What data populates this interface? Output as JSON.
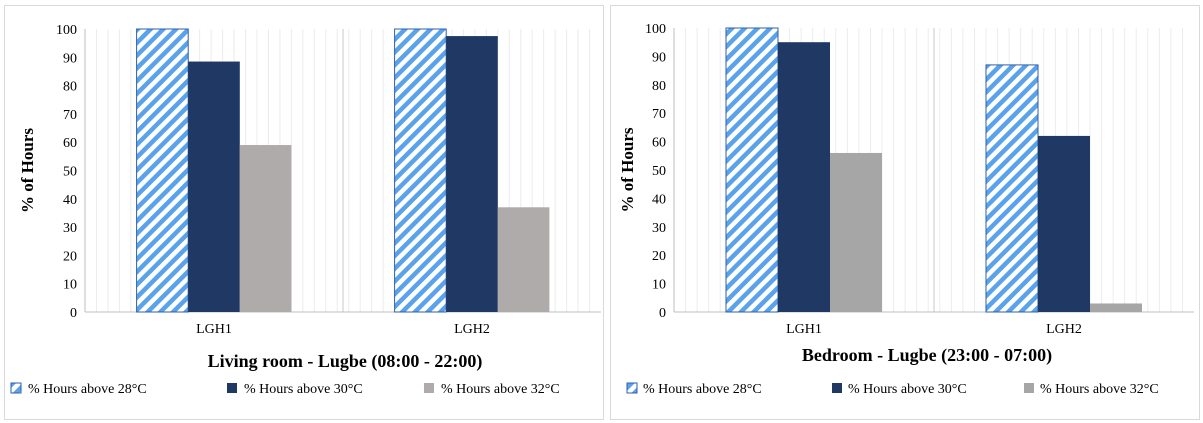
{
  "chart_data": [
    {
      "type": "bar",
      "title": "Living room - Lugbe (08:00 - 22:00)",
      "xlabel": "",
      "ylabel": "% of Hours",
      "ylim": [
        0,
        100
      ],
      "yticks": [
        0,
        10,
        20,
        30,
        40,
        50,
        60,
        70,
        80,
        90,
        100
      ],
      "categories": [
        "LGH1",
        "LGH2"
      ],
      "series": [
        {
          "name": "% Hours above 28°C",
          "values": [
            100,
            100
          ],
          "color": "#5aa2ea",
          "pattern": "diagonal-stripes"
        },
        {
          "name": "% Hours above 30°C",
          "values": [
            88.5,
            97.5
          ],
          "color": "#203864",
          "pattern": "solid"
        },
        {
          "name": "% Hours above 32°C",
          "values": [
            59,
            37
          ],
          "color": "#b0abab",
          "pattern": "solid"
        }
      ],
      "grid": "vertical minor gridlines",
      "legend_position": "bottom"
    },
    {
      "type": "bar",
      "title": "Bedroom - Lugbe (23:00 - 07:00)",
      "xlabel": "",
      "ylabel": "% of Hours",
      "ylim": [
        0,
        100
      ],
      "yticks": [
        0,
        10,
        20,
        30,
        40,
        50,
        60,
        70,
        80,
        90,
        100
      ],
      "categories": [
        "LGH1",
        "LGH2"
      ],
      "series": [
        {
          "name": "% Hours above 28°C",
          "values": [
            100,
            87
          ],
          "color": "#5aa2ea",
          "pattern": "diagonal-stripes"
        },
        {
          "name": "% Hours above 30°C",
          "values": [
            95,
            62
          ],
          "color": "#203864",
          "pattern": "solid"
        },
        {
          "name": "% Hours above 32°C",
          "values": [
            56,
            3
          ],
          "color": "#a6a6a6",
          "pattern": "solid"
        }
      ],
      "grid": "vertical minor gridlines",
      "legend_position": "bottom"
    }
  ]
}
